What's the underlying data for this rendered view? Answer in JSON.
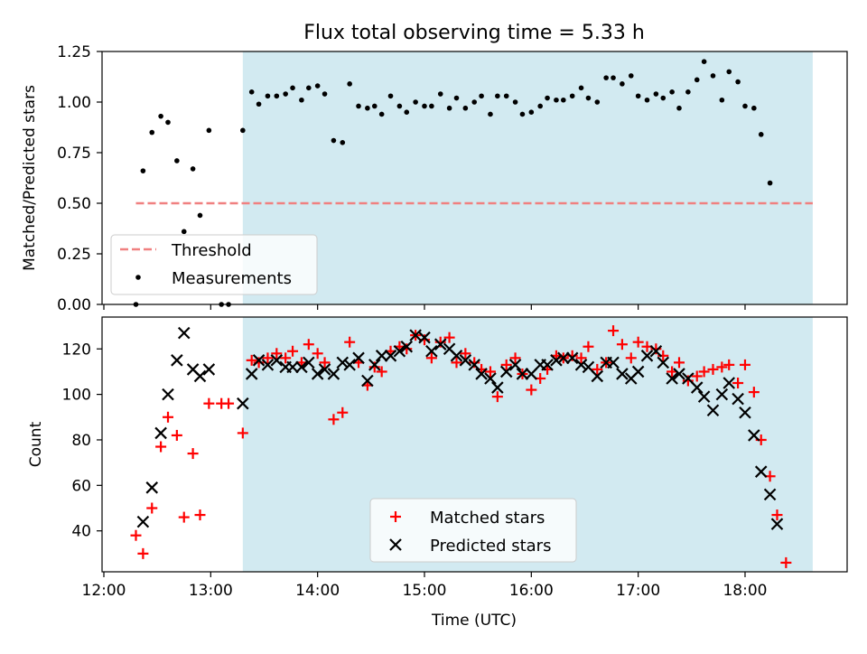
{
  "figure": {
    "title": "Flux total observing time = 5.33 h"
  },
  "chart_data": [
    {
      "type": "scatter",
      "title": "Flux total observing time = 5.33 h",
      "xlabel": "",
      "ylabel": "Matched/Predicted stars",
      "xlim": [
        "12:00",
        "19:00"
      ],
      "ylim": [
        0,
        1.25
      ],
      "yticks": [
        "0.00",
        "0.25",
        "0.50",
        "0.75",
        "1.00",
        "1.25"
      ],
      "shaded_span": [
        "13:18",
        "18:38"
      ],
      "shaded_color": "#add8e6",
      "threshold": {
        "name": "Threshold",
        "value": 0.5,
        "x_start": "12:18",
        "x_end": "18:38",
        "color": "#f08080",
        "style": "dashed"
      },
      "legend": {
        "position": "lower-left",
        "entries": [
          "Threshold",
          "Measurements"
        ]
      },
      "series": [
        {
          "name": "Measurements",
          "marker": "dot",
          "color": "#000000",
          "points": [
            [
              "12:18",
              0.0
            ],
            [
              "12:22",
              0.66
            ],
            [
              "12:27",
              0.85
            ],
            [
              "12:32",
              0.93
            ],
            [
              "12:36",
              0.9
            ],
            [
              "12:41",
              0.71
            ],
            [
              "12:45",
              0.36
            ],
            [
              "12:50",
              0.67
            ],
            [
              "12:54",
              0.44
            ],
            [
              "12:59",
              0.86
            ],
            [
              "13:06",
              0.0
            ],
            [
              "13:10",
              0.0
            ],
            [
              "13:18",
              0.86
            ],
            [
              "13:23",
              1.05
            ],
            [
              "13:27",
              0.99
            ],
            [
              "13:32",
              1.03
            ],
            [
              "13:37",
              1.03
            ],
            [
              "13:42",
              1.04
            ],
            [
              "13:46",
              1.07
            ],
            [
              "13:51",
              1.01
            ],
            [
              "13:55",
              1.07
            ],
            [
              "14:00",
              1.08
            ],
            [
              "14:04",
              1.04
            ],
            [
              "14:09",
              0.81
            ],
            [
              "14:14",
              0.8
            ],
            [
              "14:18",
              1.09
            ],
            [
              "14:23",
              0.98
            ],
            [
              "14:28",
              0.97
            ],
            [
              "14:32",
              0.98
            ],
            [
              "14:36",
              0.94
            ],
            [
              "14:41",
              1.03
            ],
            [
              "14:46",
              0.98
            ],
            [
              "14:50",
              0.95
            ],
            [
              "14:55",
              1.0
            ],
            [
              "15:00",
              0.98
            ],
            [
              "15:04",
              0.98
            ],
            [
              "15:09",
              1.04
            ],
            [
              "15:14",
              0.97
            ],
            [
              "15:18",
              1.02
            ],
            [
              "15:23",
              0.97
            ],
            [
              "15:28",
              1.0
            ],
            [
              "15:32",
              1.03
            ],
            [
              "15:37",
              0.94
            ],
            [
              "15:41",
              1.03
            ],
            [
              "15:46",
              1.03
            ],
            [
              "15:51",
              1.0
            ],
            [
              "15:55",
              0.94
            ],
            [
              "16:00",
              0.95
            ],
            [
              "16:05",
              0.98
            ],
            [
              "16:09",
              1.02
            ],
            [
              "16:14",
              1.01
            ],
            [
              "16:18",
              1.01
            ],
            [
              "16:23",
              1.03
            ],
            [
              "16:28",
              1.07
            ],
            [
              "16:32",
              1.02
            ],
            [
              "16:37",
              1.0
            ],
            [
              "16:42",
              1.12
            ],
            [
              "16:46",
              1.12
            ],
            [
              "16:51",
              1.09
            ],
            [
              "16:56",
              1.13
            ],
            [
              "17:00",
              1.03
            ],
            [
              "17:05",
              1.01
            ],
            [
              "17:10",
              1.04
            ],
            [
              "17:14",
              1.02
            ],
            [
              "17:19",
              1.05
            ],
            [
              "17:23",
              0.97
            ],
            [
              "17:28",
              1.05
            ],
            [
              "17:33",
              1.11
            ],
            [
              "17:37",
              1.2
            ],
            [
              "17:42",
              1.13
            ],
            [
              "17:47",
              1.01
            ],
            [
              "17:51",
              1.15
            ],
            [
              "17:56",
              1.1
            ],
            [
              "18:00",
              0.98
            ],
            [
              "18:05",
              0.97
            ],
            [
              "18:09",
              0.84
            ],
            [
              "18:14",
              0.6
            ]
          ]
        }
      ]
    },
    {
      "type": "scatter",
      "title": "",
      "xlabel": "Time (UTC)",
      "ylabel": "Count",
      "xlim": [
        "12:00",
        "19:00"
      ],
      "ylim": [
        22,
        134
      ],
      "xticks": [
        "12:00",
        "13:00",
        "14:00",
        "15:00",
        "16:00",
        "17:00",
        "18:00"
      ],
      "yticks": [
        "40",
        "60",
        "80",
        "100",
        "120"
      ],
      "shaded_span": [
        "13:18",
        "18:38"
      ],
      "legend": {
        "position": "lower-center",
        "entries": [
          "Matched stars",
          "Predicted stars"
        ]
      },
      "series": [
        {
          "name": "Matched stars",
          "marker": "plus",
          "color": "#ff0000",
          "points": [
            [
              "12:18",
              38
            ],
            [
              "12:22",
              30
            ],
            [
              "12:27",
              50
            ],
            [
              "12:32",
              77
            ],
            [
              "12:36",
              90
            ],
            [
              "12:41",
              82
            ],
            [
              "12:45",
              46
            ],
            [
              "12:50",
              74
            ],
            [
              "12:54",
              47
            ],
            [
              "12:59",
              96
            ],
            [
              "13:06",
              96
            ],
            [
              "13:10",
              96
            ],
            [
              "13:18",
              83
            ],
            [
              "13:23",
              115
            ],
            [
              "13:27",
              114
            ],
            [
              "13:32",
              116
            ],
            [
              "13:37",
              118
            ],
            [
              "13:42",
              116
            ],
            [
              "13:46",
              119
            ],
            [
              "13:51",
              114
            ],
            [
              "13:55",
              122
            ],
            [
              "14:00",
              118
            ],
            [
              "14:04",
              114
            ],
            [
              "14:09",
              89
            ],
            [
              "14:14",
              92
            ],
            [
              "14:18",
              123
            ],
            [
              "14:23",
              114
            ],
            [
              "14:28",
              104
            ],
            [
              "14:32",
              112
            ],
            [
              "14:36",
              110
            ],
            [
              "14:41",
              119
            ],
            [
              "14:46",
              121
            ],
            [
              "14:50",
              120
            ],
            [
              "14:55",
              126
            ],
            [
              "15:00",
              124
            ],
            [
              "15:04",
              116
            ],
            [
              "15:09",
              123
            ],
            [
              "15:14",
              125
            ],
            [
              "15:18",
              114
            ],
            [
              "15:23",
              118
            ],
            [
              "15:28",
              114
            ],
            [
              "15:32",
              111
            ],
            [
              "15:37",
              110
            ],
            [
              "15:41",
              99
            ],
            [
              "15:46",
              113
            ],
            [
              "15:51",
              116
            ],
            [
              "15:55",
              109
            ],
            [
              "16:00",
              102
            ],
            [
              "16:05",
              107
            ],
            [
              "16:09",
              111
            ],
            [
              "16:14",
              117
            ],
            [
              "16:18",
              116
            ],
            [
              "16:23",
              117
            ],
            [
              "16:28",
              116
            ],
            [
              "16:32",
              121
            ],
            [
              "16:37",
              111
            ],
            [
              "16:42",
              114
            ],
            [
              "16:46",
              128
            ],
            [
              "16:51",
              122
            ],
            [
              "16:56",
              116
            ],
            [
              "17:00",
              123
            ],
            [
              "17:05",
              121
            ],
            [
              "17:10",
              120
            ],
            [
              "17:14",
              117
            ],
            [
              "17:19",
              110
            ],
            [
              "17:23",
              114
            ],
            [
              "17:28",
              106
            ],
            [
              "17:33",
              108
            ],
            [
              "17:37",
              110
            ],
            [
              "17:42",
              111
            ],
            [
              "17:47",
              112
            ],
            [
              "17:51",
              113
            ],
            [
              "17:56",
              105
            ],
            [
              "18:00",
              113
            ],
            [
              "18:05",
              101
            ],
            [
              "18:09",
              80
            ],
            [
              "18:14",
              64
            ],
            [
              "18:18",
              47
            ],
            [
              "18:23",
              26
            ]
          ]
        },
        {
          "name": "Predicted stars",
          "marker": "x",
          "color": "#000000",
          "points": [
            [
              "12:22",
              44
            ],
            [
              "12:27",
              59
            ],
            [
              "12:32",
              83
            ],
            [
              "12:36",
              100
            ],
            [
              "12:41",
              115
            ],
            [
              "12:45",
              127
            ],
            [
              "12:50",
              111
            ],
            [
              "12:54",
              108
            ],
            [
              "12:59",
              111
            ],
            [
              "13:18",
              96
            ],
            [
              "13:23",
              109
            ],
            [
              "13:27",
              115
            ],
            [
              "13:32",
              113
            ],
            [
              "13:37",
              115
            ],
            [
              "13:42",
              112
            ],
            [
              "13:46",
              112
            ],
            [
              "13:51",
              112
            ],
            [
              "13:55",
              114
            ],
            [
              "14:00",
              109
            ],
            [
              "14:04",
              111
            ],
            [
              "14:09",
              109
            ],
            [
              "14:14",
              114
            ],
            [
              "14:18",
              113
            ],
            [
              "14:23",
              116
            ],
            [
              "14:28",
              106
            ],
            [
              "14:32",
              113
            ],
            [
              "14:36",
              117
            ],
            [
              "14:41",
              117
            ],
            [
              "14:46",
              119
            ],
            [
              "14:50",
              121
            ],
            [
              "14:55",
              126
            ],
            [
              "15:00",
              125
            ],
            [
              "15:04",
              119
            ],
            [
              "15:09",
              122
            ],
            [
              "15:14",
              120
            ],
            [
              "15:18",
              117
            ],
            [
              "15:23",
              115
            ],
            [
              "15:28",
              113
            ],
            [
              "15:32",
              109
            ],
            [
              "15:37",
              107
            ],
            [
              "15:41",
              103
            ],
            [
              "15:46",
              110
            ],
            [
              "15:51",
              113
            ],
            [
              "15:55",
              109
            ],
            [
              "16:00",
              109
            ],
            [
              "16:05",
              113
            ],
            [
              "16:09",
              113
            ],
            [
              "16:14",
              115
            ],
            [
              "16:18",
              116
            ],
            [
              "16:23",
              116
            ],
            [
              "16:28",
              113
            ],
            [
              "16:32",
              112
            ],
            [
              "16:37",
              108
            ],
            [
              "16:42",
              114
            ],
            [
              "16:46",
              114
            ],
            [
              "16:51",
              109
            ],
            [
              "16:56",
              107
            ],
            [
              "17:00",
              110
            ],
            [
              "17:05",
              117
            ],
            [
              "17:10",
              119
            ],
            [
              "17:14",
              114
            ],
            [
              "17:19",
              107
            ],
            [
              "17:23",
              109
            ],
            [
              "17:28",
              107
            ],
            [
              "17:33",
              103
            ],
            [
              "17:37",
              99
            ],
            [
              "17:42",
              93
            ],
            [
              "17:47",
              100
            ],
            [
              "17:51",
              105
            ],
            [
              "17:56",
              98
            ],
            [
              "18:00",
              92
            ],
            [
              "18:05",
              82
            ],
            [
              "18:09",
              66
            ],
            [
              "18:14",
              56
            ],
            [
              "18:18",
              43
            ]
          ]
        }
      ]
    }
  ]
}
